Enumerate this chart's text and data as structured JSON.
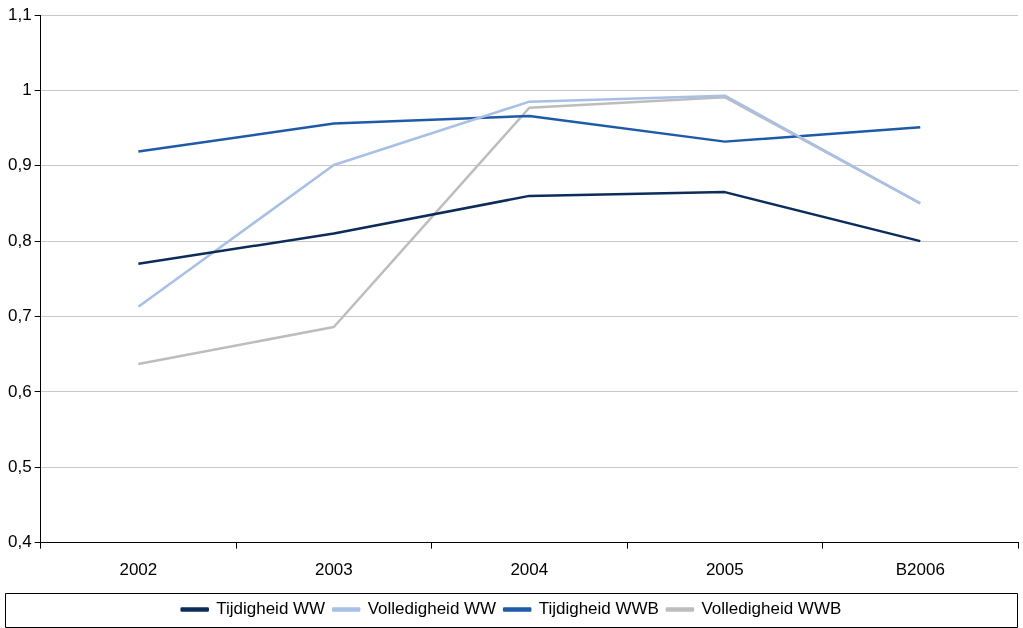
{
  "chart_data": {
    "type": "line",
    "categories": [
      "2002",
      "2003",
      "2004",
      "2005",
      "B2006"
    ],
    "series": [
      {
        "name": "Tijdigheid WW",
        "color": "#0d2c5a",
        "values": [
          0.77,
          0.81,
          0.86,
          0.865,
          0.8
        ]
      },
      {
        "name": "Volledigheid WW",
        "color": "#a8bfe6",
        "values": [
          0.713,
          0.901,
          0.985,
          0.993,
          0.85
        ]
      },
      {
        "name": "Tijdigheid WWB",
        "color": "#1e5aa8",
        "values": [
          0.919,
          0.956,
          0.966,
          0.932,
          0.951
        ]
      },
      {
        "name": "Volledigheid WWB",
        "color": "#bdbdbd",
        "values": [
          0.637,
          0.686,
          0.977,
          0.991,
          0.85
        ]
      }
    ],
    "ylim": [
      0.4,
      1.1
    ],
    "yticks": [
      {
        "value": 0.4,
        "label": "0,4"
      },
      {
        "value": 0.5,
        "label": "0,5"
      },
      {
        "value": 0.6,
        "label": "0,6"
      },
      {
        "value": 0.7,
        "label": "0,7"
      },
      {
        "value": 0.8,
        "label": "0,8"
      },
      {
        "value": 0.9,
        "label": "0,9"
      },
      {
        "value": 1,
        "label": "1"
      },
      {
        "value": 1.1,
        "label": "1,1"
      }
    ],
    "grid": "y",
    "legend": "bottom",
    "marker": "none",
    "line_style": "solid"
  }
}
